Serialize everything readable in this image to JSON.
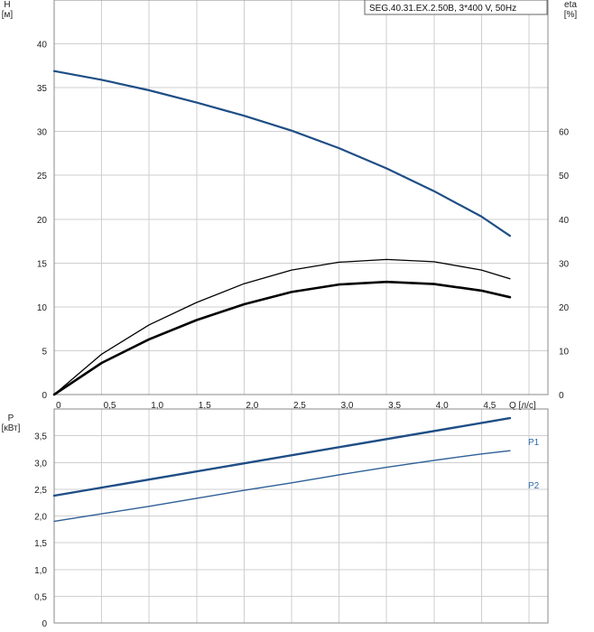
{
  "chart_data": [
    {
      "type": "line",
      "title": "SEG.40.31.EX.2.50B, 3*400 V, 50Hz",
      "xlabel": "Q [л/с]",
      "ylabel": "H\n[м]",
      "y2label": "eta\n[%]",
      "xlim": [
        0,
        5.2
      ],
      "ylim": [
        0,
        45
      ],
      "y2lim": [
        0,
        90
      ],
      "xticks": [
        "0",
        "0,5",
        "1,0",
        "1,5",
        "2,0",
        "2,5",
        "3,0",
        "3,5",
        "4,0",
        "4,5",
        "Q [л/с]"
      ],
      "yticks": [
        "0",
        "5",
        "10",
        "15",
        "20",
        "25",
        "30",
        "35",
        "40"
      ],
      "y2ticks": [
        "0",
        "10",
        "20",
        "30",
        "40",
        "50",
        "60"
      ],
      "grid": true,
      "series": [
        {
          "axis": "left",
          "color": "#1f4e85",
          "x": [
            0,
            0.5,
            1.0,
            1.5,
            2.0,
            2.5,
            3.0,
            3.5,
            4.0,
            4.5,
            4.8
          ],
          "values": [
            36.9,
            35.9,
            34.7,
            33.3,
            31.8,
            30.1,
            28.1,
            25.8,
            23.2,
            20.3,
            18.1
          ]
        },
        {
          "axis": "right",
          "color": "#000000",
          "x": [
            0,
            0.5,
            1.0,
            1.5,
            2.0,
            2.5,
            3.0,
            3.5,
            4.0,
            4.5,
            4.8
          ],
          "values": [
            0,
            9.2,
            15.9,
            21.0,
            25.3,
            28.4,
            30.2,
            30.8,
            30.3,
            28.4,
            26.4
          ]
        },
        {
          "axis": "right",
          "color": "#000000",
          "x": [
            0,
            0.5,
            1.0,
            1.5,
            2.0,
            2.5,
            3.0,
            3.5,
            4.0,
            4.5,
            4.8
          ],
          "values": [
            0,
            7.2,
            12.6,
            17.0,
            20.6,
            23.4,
            25.1,
            25.7,
            25.2,
            23.7,
            22.2
          ]
        }
      ]
    },
    {
      "type": "line",
      "title": "",
      "xlabel": "",
      "ylabel": "P\n[кВт]",
      "xlim": [
        0,
        5.2
      ],
      "ylim": [
        0,
        4.0
      ],
      "yticks": [
        "0",
        "0,5",
        "1,0",
        "1,5",
        "2,0",
        "2,5",
        "3,0",
        "3,5"
      ],
      "grid": true,
      "series": [
        {
          "name": "P1",
          "color": "#1f4e85",
          "x": [
            0,
            4.8
          ],
          "values": [
            2.38,
            3.83
          ]
        },
        {
          "name": "P2",
          "color": "#2e5f97",
          "x": [
            0,
            0.5,
            1.0,
            1.5,
            2.0,
            2.5,
            3.0,
            3.5,
            4.0,
            4.5,
            4.8
          ],
          "values": [
            1.9,
            2.04,
            2.18,
            2.33,
            2.48,
            2.62,
            2.77,
            2.91,
            3.04,
            3.16,
            3.22
          ]
        }
      ]
    }
  ]
}
